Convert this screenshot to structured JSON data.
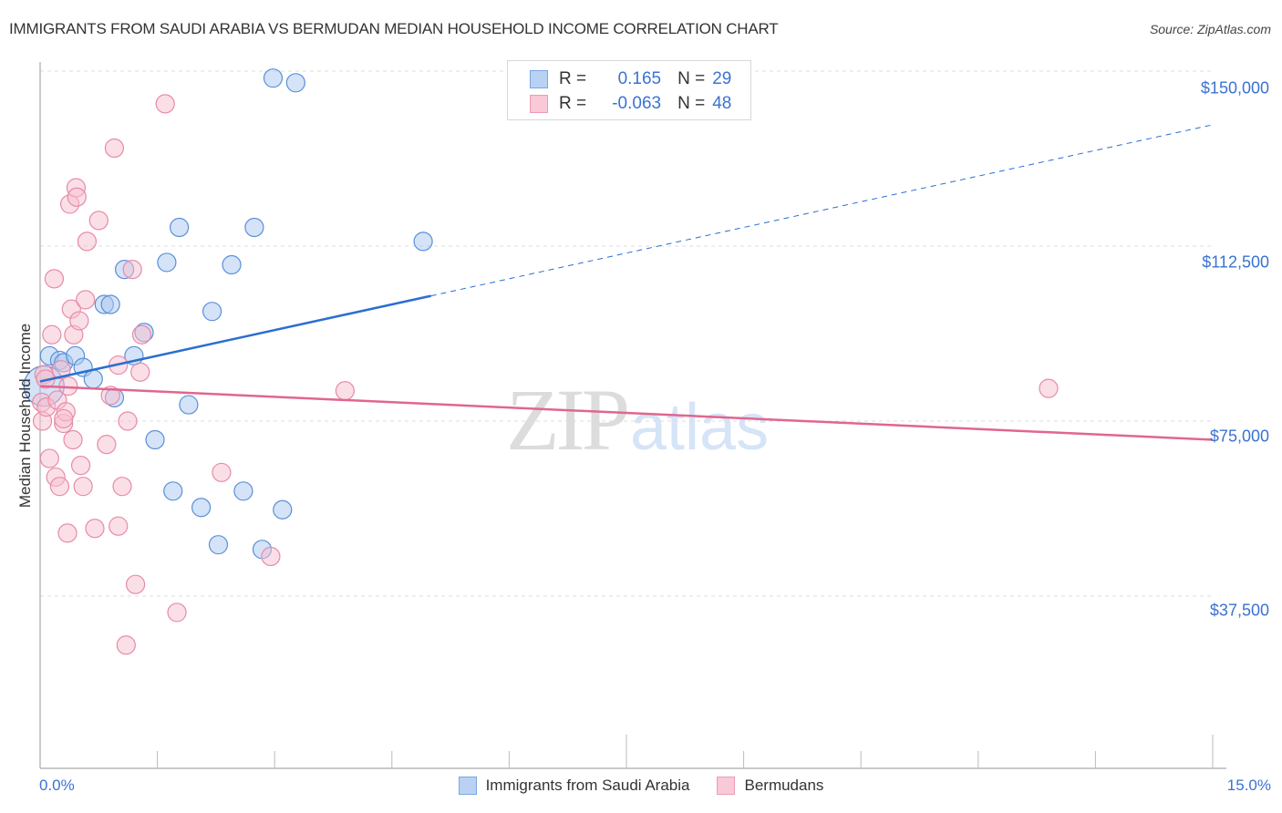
{
  "header": {
    "title": "IMMIGRANTS FROM SAUDI ARABIA VS BERMUDAN MEDIAN HOUSEHOLD INCOME CORRELATION CHART",
    "source": "Source: ZipAtlas.com"
  },
  "legend": {
    "rows": [
      {
        "r_label": "R =",
        "r_value": "0.165",
        "n_label": "N =",
        "n_value": "29"
      },
      {
        "r_label": "R =",
        "r_value": "-0.063",
        "n_label": "N =",
        "n_value": "48"
      }
    ],
    "bottom": [
      {
        "label": "Immigrants from Saudi Arabia"
      },
      {
        "label": "Bermudans"
      }
    ]
  },
  "axes": {
    "ylabel": "Median Household Income",
    "y_ticks": [
      "$150,000",
      "$112,500",
      "$75,000",
      "$37,500"
    ],
    "x_min_label": "0.0%",
    "x_max_label": "15.0%"
  },
  "watermark": {
    "zip": "ZIP",
    "atlas": "atlas"
  },
  "colors": {
    "blue_fill": "#a9c8f0",
    "blue_stroke": "#5a8fd8",
    "blue_line": "#2a6fd0",
    "pink_fill": "#f7bfd0",
    "pink_stroke": "#e78aa8",
    "pink_line": "#e06690",
    "tick_text": "#3b73d1"
  },
  "chart_data": {
    "type": "scatter",
    "title": "IMMIGRANTS FROM SAUDI ARABIA VS BERMUDAN MEDIAN HOUSEHOLD INCOME CORRELATION CHART",
    "xlabel": "",
    "ylabel": "Median Household Income",
    "xlim": [
      0,
      15
    ],
    "ylim": [
      0,
      155000
    ],
    "x_unit": "%",
    "y_ticks": [
      37500,
      75000,
      112500,
      150000
    ],
    "grid": true,
    "legend_position": "top-center",
    "series": [
      {
        "name": "Immigrants from Saudi Arabia",
        "R": 0.165,
        "N": 29,
        "trend": {
          "x0": 0,
          "y0": 83500,
          "x1": 15,
          "y1": 138500,
          "solid_until_x": 5.0
        },
        "points": [
          {
            "x": 0.05,
            "y": 82500,
            "large": true
          },
          {
            "x": 0.12,
            "y": 89000
          },
          {
            "x": 0.25,
            "y": 88000
          },
          {
            "x": 0.3,
            "y": 87500
          },
          {
            "x": 0.45,
            "y": 89000
          },
          {
            "x": 0.55,
            "y": 86500
          },
          {
            "x": 0.68,
            "y": 84000
          },
          {
            "x": 0.82,
            "y": 100000
          },
          {
            "x": 0.9,
            "y": 100000
          },
          {
            "x": 0.95,
            "y": 80000
          },
          {
            "x": 1.08,
            "y": 107500
          },
          {
            "x": 1.2,
            "y": 89000
          },
          {
            "x": 1.33,
            "y": 94000
          },
          {
            "x": 1.47,
            "y": 71000
          },
          {
            "x": 1.62,
            "y": 109000
          },
          {
            "x": 1.7,
            "y": 60000
          },
          {
            "x": 1.78,
            "y": 116500
          },
          {
            "x": 1.9,
            "y": 78500
          },
          {
            "x": 2.06,
            "y": 56500
          },
          {
            "x": 2.2,
            "y": 98500
          },
          {
            "x": 2.28,
            "y": 48500
          },
          {
            "x": 2.45,
            "y": 108500
          },
          {
            "x": 2.6,
            "y": 60000
          },
          {
            "x": 2.74,
            "y": 116500
          },
          {
            "x": 2.84,
            "y": 47500
          },
          {
            "x": 2.98,
            "y": 148500
          },
          {
            "x": 3.1,
            "y": 56000
          },
          {
            "x": 3.27,
            "y": 147500
          },
          {
            "x": 4.9,
            "y": 113500
          }
        ]
      },
      {
        "name": "Bermudans",
        "R": -0.063,
        "N": 48,
        "trend": {
          "x0": 0,
          "y0": 82500,
          "x1": 15,
          "y1": 71000
        },
        "points": [
          {
            "x": 0.02,
            "y": 79000
          },
          {
            "x": 0.03,
            "y": 75000
          },
          {
            "x": 0.05,
            "y": 85000
          },
          {
            "x": 0.08,
            "y": 78000
          },
          {
            "x": 0.12,
            "y": 67000
          },
          {
            "x": 0.15,
            "y": 93500
          },
          {
            "x": 0.18,
            "y": 105500
          },
          {
            "x": 0.2,
            "y": 63000
          },
          {
            "x": 0.22,
            "y": 79500
          },
          {
            "x": 0.25,
            "y": 61000
          },
          {
            "x": 0.3,
            "y": 74500
          },
          {
            "x": 0.33,
            "y": 77000
          },
          {
            "x": 0.35,
            "y": 51000
          },
          {
            "x": 0.36,
            "y": 82500
          },
          {
            "x": 0.38,
            "y": 121500
          },
          {
            "x": 0.4,
            "y": 99000
          },
          {
            "x": 0.42,
            "y": 71000
          },
          {
            "x": 0.43,
            "y": 93500
          },
          {
            "x": 0.46,
            "y": 125000
          },
          {
            "x": 0.47,
            "y": 123000
          },
          {
            "x": 0.5,
            "y": 96500
          },
          {
            "x": 0.52,
            "y": 65500
          },
          {
            "x": 0.55,
            "y": 61000
          },
          {
            "x": 0.58,
            "y": 101000
          },
          {
            "x": 0.6,
            "y": 113500
          },
          {
            "x": 0.7,
            "y": 52000
          },
          {
            "x": 0.75,
            "y": 118000
          },
          {
            "x": 0.85,
            "y": 70000
          },
          {
            "x": 0.9,
            "y": 80500
          },
          {
            "x": 0.95,
            "y": 133500
          },
          {
            "x": 1.0,
            "y": 87000
          },
          {
            "x": 1.05,
            "y": 61000
          },
          {
            "x": 1.1,
            "y": 27000
          },
          {
            "x": 1.12,
            "y": 75000
          },
          {
            "x": 1.18,
            "y": 107500
          },
          {
            "x": 1.22,
            "y": 40000
          },
          {
            "x": 1.28,
            "y": 85500
          },
          {
            "x": 1.3,
            "y": 93500
          },
          {
            "x": 1.6,
            "y": 143000
          },
          {
            "x": 1.75,
            "y": 34000
          },
          {
            "x": 2.32,
            "y": 64000
          },
          {
            "x": 2.95,
            "y": 46000
          },
          {
            "x": 3.9,
            "y": 81500
          },
          {
            "x": 12.9,
            "y": 82000
          },
          {
            "x": 0.07,
            "y": 84000
          },
          {
            "x": 0.27,
            "y": 86000
          },
          {
            "x": 0.3,
            "y": 75500
          },
          {
            "x": 1.0,
            "y": 52500
          }
        ]
      }
    ]
  }
}
